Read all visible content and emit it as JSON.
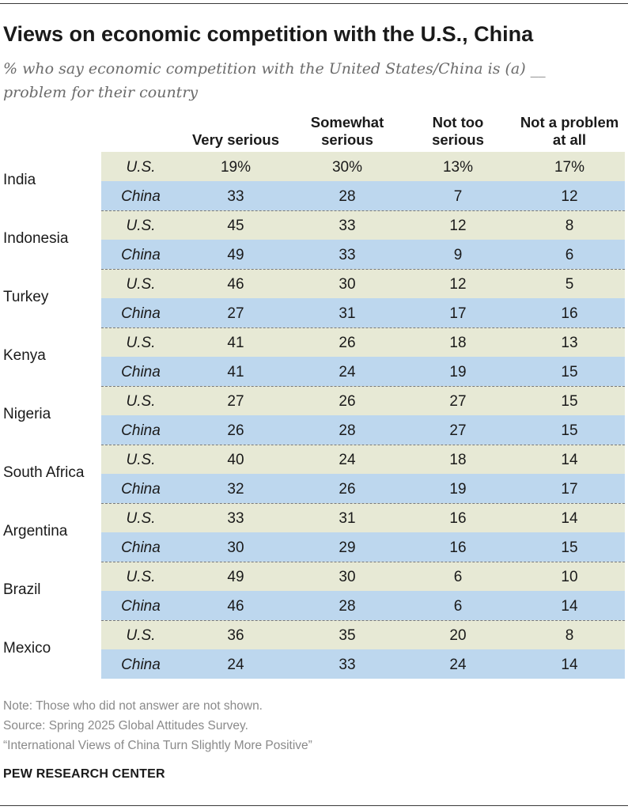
{
  "title": "Views on economic competition with the U.S., China",
  "subtitle": "% who say economic competition with the United States/China is (a) __ problem for their country",
  "chart_data": {
    "type": "table",
    "columns": [
      {
        "label": "Very serious"
      },
      {
        "label": "Somewhat serious"
      },
      {
        "label": "Not too serious"
      },
      {
        "label": "Not a problem at all"
      }
    ],
    "column_header_lines": [
      [
        "Very serious"
      ],
      [
        "Somewhat",
        "serious"
      ],
      [
        "Not too",
        "serious"
      ],
      [
        "Not a problem",
        "at all"
      ]
    ],
    "rows": [
      {
        "country": "India",
        "us": [
          "19%",
          "30%",
          "13%",
          "17%"
        ],
        "china": [
          "33",
          "28",
          "7",
          "12"
        ]
      },
      {
        "country": "Indonesia",
        "us": [
          "45",
          "33",
          "12",
          "8"
        ],
        "china": [
          "49",
          "33",
          "9",
          "6"
        ]
      },
      {
        "country": "Turkey",
        "us": [
          "46",
          "30",
          "12",
          "5"
        ],
        "china": [
          "27",
          "31",
          "17",
          "16"
        ]
      },
      {
        "country": "Kenya",
        "us": [
          "41",
          "26",
          "18",
          "13"
        ],
        "china": [
          "41",
          "24",
          "19",
          "15"
        ]
      },
      {
        "country": "Nigeria",
        "us": [
          "27",
          "26",
          "27",
          "15"
        ],
        "china": [
          "26",
          "28",
          "27",
          "15"
        ]
      },
      {
        "country": "South Africa",
        "us": [
          "40",
          "24",
          "18",
          "14"
        ],
        "china": [
          "32",
          "26",
          "19",
          "17"
        ]
      },
      {
        "country": "Argentina",
        "us": [
          "33",
          "31",
          "16",
          "14"
        ],
        "china": [
          "30",
          "29",
          "16",
          "15"
        ]
      },
      {
        "country": "Brazil",
        "us": [
          "49",
          "30",
          "6",
          "10"
        ],
        "china": [
          "46",
          "28",
          "6",
          "14"
        ]
      },
      {
        "country": "Mexico",
        "us": [
          "36",
          "35",
          "20",
          "8"
        ],
        "china": [
          "24",
          "33",
          "24",
          "14"
        ]
      }
    ],
    "sub_labels": {
      "us": "U.S.",
      "china": "China"
    },
    "colors": {
      "us_band": "#e7e9d5",
      "china_band": "#bdd7ee"
    }
  },
  "footer": {
    "note": "Note: Those who did not answer are not shown.",
    "source": "Source: Spring 2025 Global Attitudes Survey.",
    "report": "“International Views of China Turn Slightly More Positive”",
    "brand": "PEW RESEARCH CENTER"
  }
}
